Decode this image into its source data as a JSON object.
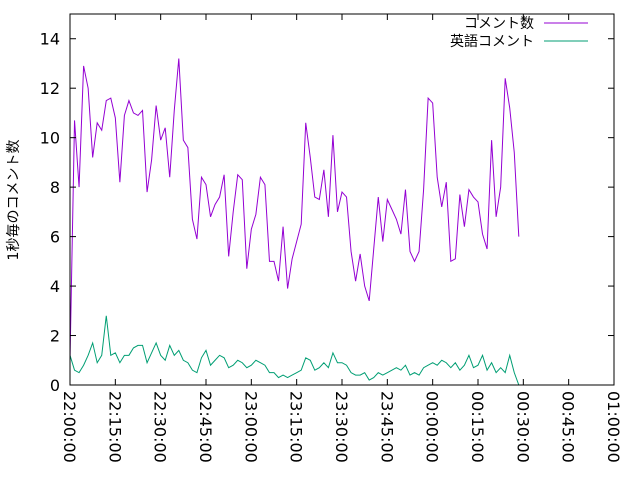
{
  "chart_data": {
    "type": "line",
    "title": "",
    "xlabel": "",
    "ylabel": "1秒毎のコメント数",
    "xlim": [
      "22:00:00",
      "01:00:00"
    ],
    "ylim": [
      0,
      15
    ],
    "x_ticks": [
      "22:00:00",
      "22:15:00",
      "22:30:00",
      "22:45:00",
      "23:00:00",
      "23:15:00",
      "23:30:00",
      "23:45:00",
      "00:00:00",
      "00:15:00",
      "00:30:00",
      "00:45:00",
      "01:00:00"
    ],
    "y_ticks": [
      0,
      2,
      4,
      6,
      8,
      10,
      12,
      14
    ],
    "x_tick_rotation_deg": 90,
    "grid": false,
    "legend_position": "top-right",
    "x_start_time": "22:00:00",
    "x_step_sec": 90,
    "series": [
      {
        "name": "コメント数",
        "color": "#9400d3",
        "values": [
          1.0,
          10.7,
          8.0,
          12.9,
          12.0,
          9.2,
          10.6,
          10.3,
          11.5,
          11.6,
          10.8,
          8.2,
          10.9,
          11.5,
          11.0,
          10.9,
          11.1,
          7.8,
          9.1,
          11.3,
          9.9,
          10.4,
          8.4,
          11.1,
          13.2,
          9.9,
          9.6,
          6.7,
          5.9,
          8.4,
          8.1,
          6.8,
          7.3,
          7.6,
          8.5,
          5.2,
          7.0,
          8.5,
          8.3,
          4.7,
          6.3,
          6.9,
          8.4,
          8.1,
          5.0,
          5.0,
          4.2,
          6.4,
          3.9,
          5.1,
          5.8,
          6.5,
          10.6,
          9.2,
          7.6,
          7.5,
          8.7,
          6.8,
          10.1,
          7.0,
          7.8,
          7.6,
          5.4,
          4.2,
          5.3,
          4.0,
          3.4,
          5.5,
          7.6,
          5.8,
          7.5,
          7.1,
          6.7,
          6.1,
          7.9,
          5.4,
          5.0,
          5.4,
          7.9,
          11.6,
          11.4,
          8.4,
          7.2,
          8.2,
          5.0,
          5.1,
          7.7,
          6.4,
          7.9,
          7.6,
          7.4,
          6.1,
          5.5,
          9.9,
          6.8,
          8.0,
          12.4,
          11.2,
          9.4,
          6.0
        ]
      },
      {
        "name": "英語コメント",
        "color": "#009e73",
        "values": [
          1.2,
          0.6,
          0.5,
          0.8,
          1.2,
          1.7,
          0.9,
          1.2,
          2.8,
          1.2,
          1.3,
          0.9,
          1.2,
          1.2,
          1.5,
          1.6,
          1.6,
          0.9,
          1.3,
          1.7,
          1.2,
          1.0,
          1.6,
          1.2,
          1.4,
          1.0,
          0.9,
          0.6,
          0.5,
          1.1,
          1.4,
          0.8,
          1.0,
          1.2,
          1.1,
          0.7,
          0.8,
          1.0,
          0.9,
          0.7,
          0.8,
          1.0,
          0.9,
          0.8,
          0.5,
          0.5,
          0.3,
          0.4,
          0.3,
          0.4,
          0.5,
          0.6,
          1.1,
          1.0,
          0.6,
          0.7,
          0.9,
          0.7,
          1.3,
          0.9,
          0.9,
          0.8,
          0.5,
          0.4,
          0.4,
          0.5,
          0.2,
          0.3,
          0.5,
          0.4,
          0.5,
          0.6,
          0.7,
          0.6,
          0.8,
          0.4,
          0.5,
          0.4,
          0.7,
          0.8,
          0.9,
          0.8,
          1.0,
          0.9,
          0.7,
          0.9,
          0.6,
          0.8,
          1.2,
          0.7,
          0.8,
          1.2,
          0.6,
          0.9,
          0.5,
          0.7,
          0.5,
          1.2,
          0.5,
          0.0
        ]
      }
    ]
  }
}
